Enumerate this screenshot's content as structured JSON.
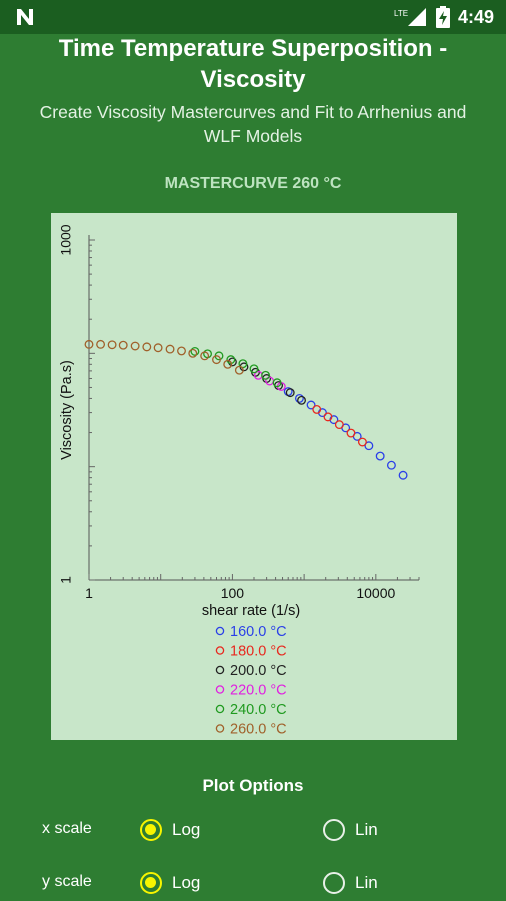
{
  "status_bar": {
    "network": "LTE",
    "time": "4:49",
    "left_icon": "n-icon"
  },
  "header": {
    "title_line1": "Time Temperature Superposition -",
    "title_line2": "Viscosity",
    "subtitle_line1": "Create Viscosity Mastercurves and Fit to Arrhenius and",
    "subtitle_line2": "WLF Models"
  },
  "section_title": "MASTERCURVE 260 °C",
  "chart_data": {
    "type": "scatter",
    "title": "",
    "xlabel": "shear rate (1/s)",
    "ylabel": "Viscosity (Pa.s)",
    "xscale": "log",
    "yscale": "log",
    "xlim": [
      1,
      40000
    ],
    "ylim": [
      1,
      1000
    ],
    "x_tick_labels": [
      {
        "value": 1,
        "label": "1"
      },
      {
        "value": 100,
        "label": "100"
      },
      {
        "value": 10000,
        "label": "10000"
      }
    ],
    "y_tick_labels": [
      {
        "value": 1,
        "label": "1"
      },
      {
        "value": 1000,
        "label": "1000"
      }
    ],
    "legend_position": "bottom",
    "series": [
      {
        "name": "160.0 °C",
        "color": "#2a3fe8",
        "x": [
          600,
          860,
          1250,
          1800,
          2600,
          3800,
          5500,
          8000,
          11500,
          16500,
          24000
        ],
        "y": [
          46,
          40,
          35,
          30,
          26,
          22,
          18.5,
          15.3,
          12.4,
          10.3,
          8.4
        ]
      },
      {
        "name": "180.0 °C",
        "color": "#e8281e",
        "x": [
          1500,
          2150,
          3100,
          4500,
          6500
        ],
        "y": [
          32,
          27.5,
          23.5,
          19.8,
          16.5
        ]
      },
      {
        "name": "200.0 °C",
        "color": "#222222",
        "x": [
          100,
          145,
          210,
          300,
          440,
          640,
          920
        ],
        "y": [
          84,
          76,
          68,
          60,
          52,
          45,
          38.5
        ]
      },
      {
        "name": "220.0 °C",
        "color": "#e020e0",
        "x": [
          230,
          330,
          480
        ],
        "y": [
          64,
          57,
          51
        ]
      },
      {
        "name": "240.0 °C",
        "color": "#1f9a1f",
        "x": [
          30,
          45,
          65,
          95,
          140,
          200,
          290,
          420
        ],
        "y": [
          104,
          99,
          95,
          88,
          81,
          73,
          64,
          55
        ]
      },
      {
        "name": "260.0 °C",
        "color": "#a0602a",
        "x": [
          1,
          1.45,
          2.1,
          3,
          4.4,
          6.4,
          9.2,
          13.5,
          19.5,
          28,
          41,
          60,
          86,
          125
        ],
        "y": [
          120,
          120,
          119,
          118,
          116,
          114,
          112,
          109,
          105,
          100,
          95,
          88,
          80,
          71
        ]
      }
    ]
  },
  "plot_options": {
    "title": "Plot Options",
    "x_scale": {
      "label": "x scale",
      "options": [
        "Log",
        "Lin"
      ],
      "selected": "Log"
    },
    "y_scale": {
      "label": "y scale",
      "options": [
        "Log",
        "Lin"
      ],
      "selected": "Log"
    }
  }
}
